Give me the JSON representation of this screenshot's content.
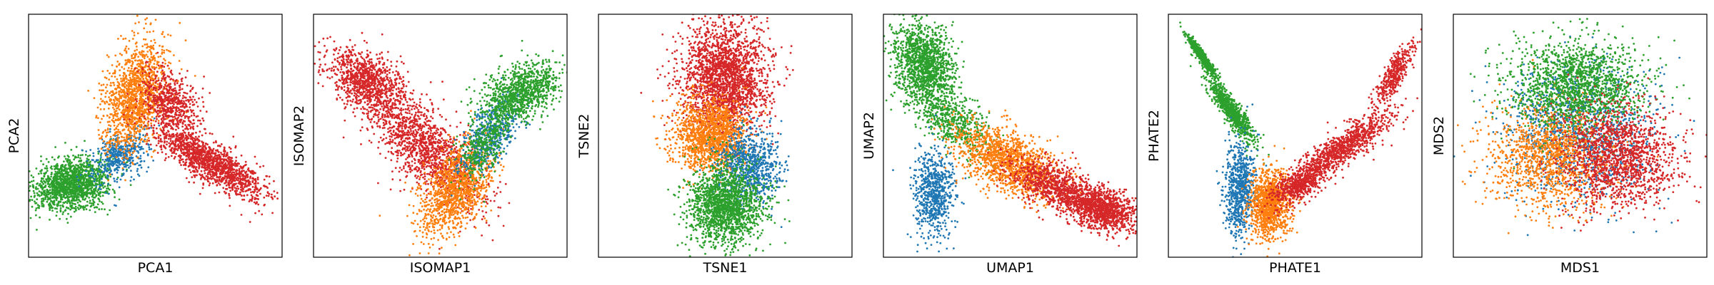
{
  "chart_data": [
    {
      "type": "scatter",
      "xlabel": "PCA1",
      "ylabel": "PCA2",
      "xticks": [],
      "yticks": [],
      "legend": "none",
      "grid": false,
      "xlim": [
        0,
        10
      ],
      "ylim": [
        0,
        10
      ],
      "series": [
        {
          "color": "#2ca02c",
          "clusters": [
            {
              "cx": 1.7,
              "cy": 3.0,
              "sx": 0.7,
              "sy": 0.55,
              "rho": 0.25,
              "n": 1500
            }
          ]
        },
        {
          "color": "#1f77b4",
          "clusters": [
            {
              "cx": 3.6,
              "cy": 4.2,
              "sx": 0.55,
              "sy": 0.55,
              "rho": 0.45,
              "n": 450
            }
          ]
        },
        {
          "color": "#ff7f0e",
          "clusters": [
            {
              "cx": 4.2,
              "cy": 6.6,
              "sx": 0.6,
              "sy": 1.1,
              "rho": 0.35,
              "n": 1400
            }
          ]
        },
        {
          "color": "#d62728",
          "clusters": [
            {
              "cx": 5.6,
              "cy": 6.4,
              "sx": 0.55,
              "sy": 0.65,
              "rho": -0.3,
              "n": 600
            },
            {
              "cx": 7.2,
              "cy": 3.9,
              "sx": 1.1,
              "sy": 0.75,
              "rho": -0.82,
              "n": 1400
            }
          ]
        }
      ]
    },
    {
      "type": "scatter",
      "xlabel": "ISOMAP1",
      "ylabel": "ISOMAP2",
      "xticks": [],
      "yticks": [],
      "legend": "none",
      "grid": false,
      "xlim": [
        0,
        10
      ],
      "ylim": [
        0,
        10
      ],
      "series": [
        {
          "color": "#d62728",
          "clusters": [
            {
              "cx": 2.0,
              "cy": 7.3,
              "sx": 0.8,
              "sy": 0.7,
              "rho": -0.5,
              "n": 900
            },
            {
              "cx": 4.3,
              "cy": 4.6,
              "sx": 1.1,
              "sy": 1.2,
              "rho": -0.72,
              "n": 1400
            }
          ]
        },
        {
          "color": "#ff7f0e",
          "clusters": [
            {
              "cx": 5.6,
              "cy": 2.8,
              "sx": 0.7,
              "sy": 0.95,
              "rho": 0.5,
              "n": 1200
            }
          ]
        },
        {
          "color": "#1f77b4",
          "clusters": [
            {
              "cx": 6.9,
              "cy": 5.0,
              "sx": 0.6,
              "sy": 0.75,
              "rho": 0.6,
              "n": 500
            }
          ]
        },
        {
          "color": "#2ca02c",
          "clusters": [
            {
              "cx": 8.2,
              "cy": 6.8,
              "sx": 0.75,
              "sy": 0.6,
              "rho": 0.4,
              "n": 1000
            },
            {
              "cx": 6.8,
              "cy": 4.8,
              "sx": 0.5,
              "sy": 0.8,
              "rho": 0.6,
              "n": 400
            }
          ]
        }
      ]
    },
    {
      "type": "scatter",
      "xlabel": "TSNE1",
      "ylabel": "TSNE2",
      "xticks": [],
      "yticks": [],
      "legend": "none",
      "grid": false,
      "xlim": [
        0,
        10
      ],
      "ylim": [
        0,
        10
      ],
      "series": [
        {
          "color": "#d62728",
          "clusters": [
            {
              "cx": 5.0,
              "cy": 7.4,
              "sx": 0.85,
              "sy": 1.15,
              "rho": 0,
              "n": 2200
            }
          ]
        },
        {
          "color": "#ff7f0e",
          "clusters": [
            {
              "cx": 4.4,
              "cy": 5.0,
              "sx": 0.75,
              "sy": 0.75,
              "rho": 0,
              "n": 1400
            }
          ]
        },
        {
          "color": "#1f77b4",
          "clusters": [
            {
              "cx": 6.0,
              "cy": 3.7,
              "sx": 0.6,
              "sy": 0.75,
              "rho": 0,
              "n": 800
            }
          ]
        },
        {
          "color": "#2ca02c",
          "clusters": [
            {
              "cx": 5.0,
              "cy": 2.2,
              "sx": 0.75,
              "sy": 0.85,
              "rho": 0,
              "n": 1700
            }
          ]
        }
      ]
    },
    {
      "type": "scatter",
      "xlabel": "UMAP1",
      "ylabel": "UMAP2",
      "xticks": [],
      "yticks": [],
      "legend": "none",
      "grid": false,
      "xlim": [
        0,
        10
      ],
      "ylim": [
        0,
        10
      ],
      "series": [
        {
          "color": "#2ca02c",
          "clusters": [
            {
              "cx": 1.6,
              "cy": 7.9,
              "sx": 0.6,
              "sy": 0.9,
              "rho": -0.2,
              "n": 1400
            },
            {
              "cx": 2.8,
              "cy": 5.6,
              "sx": 0.7,
              "sy": 0.7,
              "rho": -0.5,
              "n": 500
            }
          ]
        },
        {
          "color": "#1f77b4",
          "clusters": [
            {
              "cx": 2.0,
              "cy": 2.6,
              "sx": 0.4,
              "sy": 0.9,
              "rho": 0,
              "n": 700
            }
          ]
        },
        {
          "color": "#ff7f0e",
          "clusters": [
            {
              "cx": 5.0,
              "cy": 3.9,
              "sx": 1.05,
              "sy": 0.75,
              "rho": -0.55,
              "n": 1400
            }
          ]
        },
        {
          "color": "#d62728",
          "clusters": [
            {
              "cx": 8.6,
              "cy": 2.0,
              "sx": 0.7,
              "sy": 0.45,
              "rho": -0.3,
              "n": 1100
            },
            {
              "cx": 6.8,
              "cy": 2.9,
              "sx": 0.9,
              "sy": 0.55,
              "rho": -0.6,
              "n": 800
            }
          ]
        }
      ]
    },
    {
      "type": "scatter",
      "xlabel": "PHATE1",
      "ylabel": "PHATE2",
      "xticks": [],
      "yticks": [],
      "legend": "none",
      "grid": false,
      "xlim": [
        0,
        10
      ],
      "ylim": [
        0,
        10
      ],
      "series": [
        {
          "color": "#2ca02c",
          "clusters": [
            {
              "cx": 1.3,
              "cy": 8.3,
              "sx": 0.3,
              "sy": 0.45,
              "rho": -0.95,
              "n": 500
            },
            {
              "cx": 2.5,
              "cy": 6.0,
              "sx": 0.45,
              "sy": 0.65,
              "rho": -0.9,
              "n": 800
            }
          ]
        },
        {
          "color": "#1f77b4",
          "clusters": [
            {
              "cx": 2.8,
              "cy": 2.8,
              "sx": 0.3,
              "sy": 1.0,
              "rho": 0.1,
              "n": 700
            }
          ]
        },
        {
          "color": "#ff7f0e",
          "clusters": [
            {
              "cx": 4.0,
              "cy": 2.2,
              "sx": 0.4,
              "sy": 0.7,
              "rho": 0,
              "n": 1100
            }
          ]
        },
        {
          "color": "#d62728",
          "clusters": [
            {
              "cx": 5.2,
              "cy": 3.0,
              "sx": 0.55,
              "sy": 0.45,
              "rho": 0.6,
              "n": 600
            },
            {
              "cx": 7.0,
              "cy": 4.6,
              "sx": 0.9,
              "sy": 0.65,
              "rho": 0.85,
              "n": 900
            },
            {
              "cx": 8.9,
              "cy": 7.5,
              "sx": 0.4,
              "sy": 0.7,
              "rho": 0.85,
              "n": 400
            }
          ]
        }
      ]
    },
    {
      "type": "scatter",
      "xlabel": "MDS1",
      "ylabel": "MDS2",
      "xticks": [],
      "yticks": [],
      "legend": "none",
      "grid": false,
      "xlim": [
        0,
        10
      ],
      "ylim": [
        0,
        10
      ],
      "series": [
        {
          "color": "#1f77b4",
          "clusters": [
            {
              "cx": 5.0,
              "cy": 5.2,
              "sx": 1.5,
              "sy": 1.4,
              "rho": 0,
              "n": 1200
            }
          ]
        },
        {
          "color": "#ff7f0e",
          "clusters": [
            {
              "cx": 3.8,
              "cy": 4.2,
              "sx": 1.2,
              "sy": 1.1,
              "rho": 0,
              "n": 1300
            }
          ]
        },
        {
          "color": "#2ca02c",
          "clusters": [
            {
              "cx": 4.9,
              "cy": 7.1,
              "sx": 1.3,
              "sy": 0.9,
              "rho": 0,
              "n": 1600
            }
          ]
        },
        {
          "color": "#d62728",
          "clusters": [
            {
              "cx": 6.6,
              "cy": 4.1,
              "sx": 1.15,
              "sy": 1.05,
              "rho": 0,
              "n": 1500
            }
          ]
        }
      ]
    }
  ]
}
